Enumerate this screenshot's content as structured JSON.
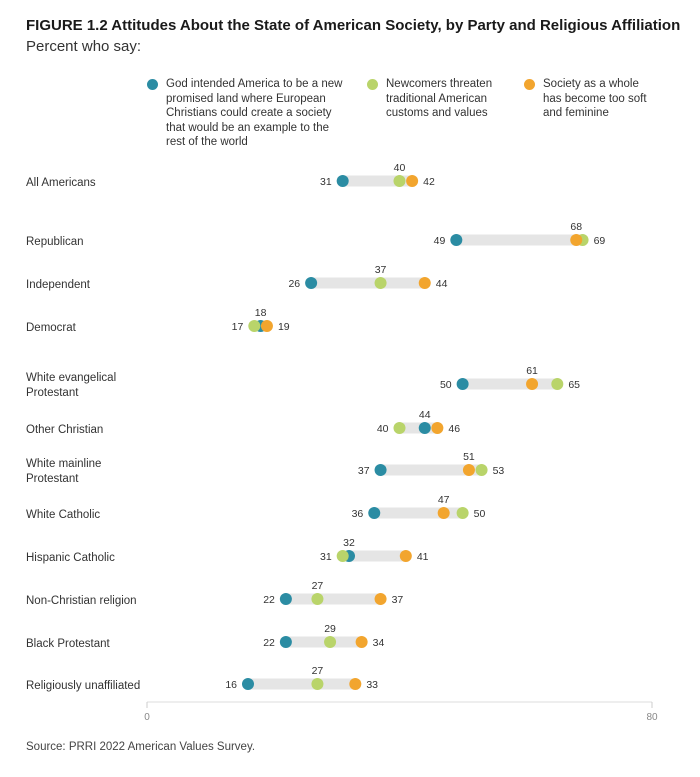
{
  "figure": {
    "title": "FIGURE 1.2  Attitudes About the State of American Society, by Party and Religious Affiliation",
    "subtitle": "Percent who say:",
    "source": "Source: PRRI 2022 American Values Survey."
  },
  "chart_data": {
    "type": "dot-plot",
    "xlim": [
      0,
      80
    ],
    "x_ticks": [
      "0",
      "80"
    ],
    "legend_placement": "top",
    "grid": false,
    "series": [
      {
        "key": "promised",
        "name": "God intended America to be a new promised land where European Christians could create a society that would be an example to the rest of the world",
        "color": "#2b8ca3"
      },
      {
        "key": "newcomers",
        "name": "Newcomers threaten traditional American customs and values",
        "color": "#b9d46a"
      },
      {
        "key": "soft",
        "name": "Society as a whole has become too soft and feminine",
        "color": "#f2a52e"
      }
    ],
    "categories": [
      {
        "label": [
          "All Americans"
        ],
        "promised": 31,
        "newcomers": 40,
        "soft": 42
      },
      {
        "label": [
          "Republican"
        ],
        "promised": 49,
        "newcomers": 69,
        "soft": 68
      },
      {
        "label": [
          "Independent"
        ],
        "promised": 26,
        "newcomers": 37,
        "soft": 44
      },
      {
        "label": [
          "Democrat"
        ],
        "promised": 18,
        "newcomers": 17,
        "soft": 19
      },
      {
        "label": [
          "White evangelical",
          "Protestant"
        ],
        "promised": 50,
        "newcomers": 65,
        "soft": 61
      },
      {
        "label": [
          "Other Christian"
        ],
        "promised": 44,
        "newcomers": 40,
        "soft": 46
      },
      {
        "label": [
          "White mainline",
          "Protestant"
        ],
        "promised": 37,
        "newcomers": 53,
        "soft": 51
      },
      {
        "label": [
          "White Catholic"
        ],
        "promised": 36,
        "newcomers": 50,
        "soft": 47
      },
      {
        "label": [
          "Hispanic Catholic"
        ],
        "promised": 32,
        "newcomers": 31,
        "soft": 41
      },
      {
        "label": [
          "Non-Christian religion"
        ],
        "promised": 22,
        "newcomers": 27,
        "soft": 37
      },
      {
        "label": [
          "Black Protestant"
        ],
        "promised": 22,
        "newcomers": 29,
        "soft": 34
      },
      {
        "label": [
          "Religiously unaffiliated"
        ],
        "promised": 16,
        "newcomers": 27,
        "soft": 33
      }
    ],
    "label_layout": {
      "Republican": {
        "above": "soft",
        "right": "newcomers"
      },
      "Democrat": {
        "above": "promised",
        "left": "newcomers",
        "right": "soft"
      },
      "White evangelical Protestant": {
        "above": "soft",
        "right": "newcomers"
      },
      "Other Christian": {
        "above": "promised",
        "left": "newcomers",
        "right": "soft"
      },
      "White mainline Protestant": {
        "above": "soft",
        "right": "newcomers"
      },
      "White Catholic": {
        "above": "soft",
        "right": "newcomers"
      },
      "Hispanic Catholic": {
        "above": "promised",
        "left": "newcomers",
        "right": "soft"
      }
    }
  }
}
